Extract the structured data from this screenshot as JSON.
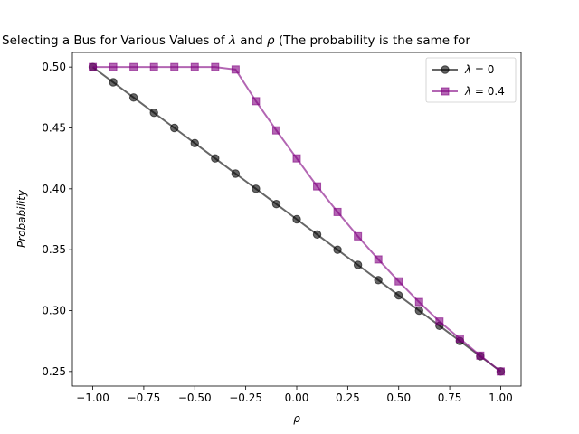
{
  "chart_data": {
    "type": "line",
    "title_main": "Selecting a Bus for Various Values of ",
    "title_lambda": "λ",
    "title_and": " and ",
    "title_rho": "ρ",
    "title_tail": " (The probability is the same for",
    "xlabel": "ρ",
    "ylabel": "Probability",
    "xlim": [
      -1.1,
      1.1
    ],
    "ylim": [
      0.238,
      0.512
    ],
    "x_ticks": [
      -1.0,
      -0.75,
      -0.5,
      -0.25,
      0.0,
      0.25,
      0.5,
      0.75,
      1.0
    ],
    "x_tick_labels": [
      "−1.00",
      "−0.75",
      "−0.50",
      "−0.25",
      "0.00",
      "0.25",
      "0.50",
      "0.75",
      "1.00"
    ],
    "y_ticks": [
      0.25,
      0.3,
      0.35,
      0.4,
      0.45,
      0.5
    ],
    "y_tick_labels": [
      "0.25",
      "0.30",
      "0.35",
      "0.40",
      "0.45",
      "0.50"
    ],
    "grid": false,
    "legend_position": "top-right",
    "x": [
      -1.0,
      -0.9,
      -0.8,
      -0.7,
      -0.6,
      -0.5,
      -0.4,
      -0.3,
      -0.2,
      -0.1,
      0.0,
      0.1,
      0.2,
      0.3,
      0.4,
      0.5,
      0.6,
      0.7,
      0.8,
      0.9,
      1.0
    ],
    "series": [
      {
        "name_sym": "λ",
        "name_rest": " = 0",
        "color": "#000000",
        "marker": "circle",
        "values": [
          0.5,
          0.4875,
          0.475,
          0.4625,
          0.45,
          0.4375,
          0.425,
          0.4125,
          0.4,
          0.3875,
          0.375,
          0.3625,
          0.35,
          0.3375,
          0.325,
          0.3125,
          0.3,
          0.2875,
          0.275,
          0.2625,
          0.25
        ]
      },
      {
        "name_sym": "λ",
        "name_rest": " = 0.4",
        "color": "#800080",
        "marker": "square",
        "values": [
          0.5,
          0.5,
          0.5,
          0.5,
          0.5,
          0.5,
          0.5,
          0.498,
          0.472,
          0.448,
          0.425,
          0.402,
          0.381,
          0.361,
          0.342,
          0.324,
          0.307,
          0.291,
          0.277,
          0.263,
          0.25
        ]
      }
    ]
  }
}
